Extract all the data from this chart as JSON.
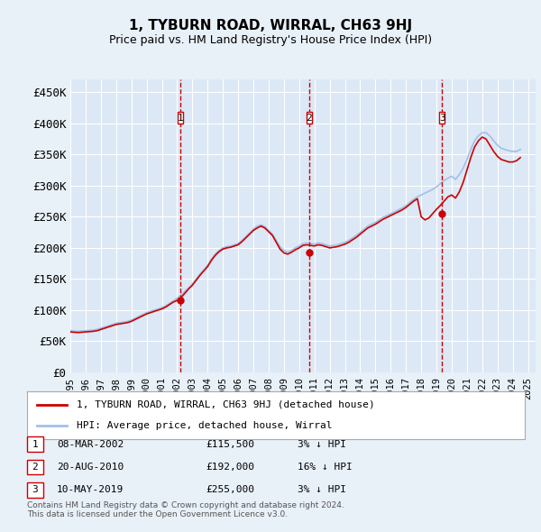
{
  "title": "1, TYBURN ROAD, WIRRAL, CH63 9HJ",
  "subtitle": "Price paid vs. HM Land Registry's House Price Index (HPI)",
  "ylabel_ticks": [
    "£0",
    "£50K",
    "£100K",
    "£150K",
    "£200K",
    "£250K",
    "£300K",
    "£350K",
    "£400K",
    "£450K"
  ],
  "ytick_values": [
    0,
    50000,
    100000,
    150000,
    200000,
    250000,
    300000,
    350000,
    400000,
    450000
  ],
  "ylim": [
    0,
    470000
  ],
  "xlim_start": 1995.0,
  "xlim_end": 2025.5,
  "bg_color": "#e8f0f8",
  "plot_bg": "#dce8f5",
  "grid_color": "#ffffff",
  "hpi_color": "#a0c0e8",
  "price_color": "#cc0000",
  "sale_marker_color": "#cc0000",
  "legend_box_color": "#ffffff",
  "legend_border_color": "#aaaaaa",
  "transaction_label": "1, TYBURN ROAD, WIRRAL, CH63 9HJ (detached house)",
  "hpi_label": "HPI: Average price, detached house, Wirral",
  "transactions": [
    {
      "id": 1,
      "date": 2002.19,
      "price": 115500,
      "hpi_pct": 3,
      "direction": "down",
      "label": "08-MAR-2002",
      "price_str": "£115,500",
      "pct_str": "3% ↓ HPI"
    },
    {
      "id": 2,
      "date": 2010.64,
      "price": 192000,
      "hpi_pct": 16,
      "direction": "down",
      "label": "20-AUG-2010",
      "price_str": "£192,000",
      "pct_str": "16% ↓ HPI"
    },
    {
      "id": 3,
      "date": 2019.36,
      "price": 255000,
      "hpi_pct": 3,
      "direction": "down",
      "label": "10-MAY-2019",
      "price_str": "£255,000",
      "pct_str": "3% ↓ HPI"
    }
  ],
  "footer_text": "Contains HM Land Registry data © Crown copyright and database right 2024.\nThis data is licensed under the Open Government Licence v3.0.",
  "hpi_data": {
    "years": [
      1995.0,
      1995.25,
      1995.5,
      1995.75,
      1996.0,
      1996.25,
      1996.5,
      1996.75,
      1997.0,
      1997.25,
      1997.5,
      1997.75,
      1998.0,
      1998.25,
      1998.5,
      1998.75,
      1999.0,
      1999.25,
      1999.5,
      1999.75,
      2000.0,
      2000.25,
      2000.5,
      2000.75,
      2001.0,
      2001.25,
      2001.5,
      2001.75,
      2002.0,
      2002.25,
      2002.5,
      2002.75,
      2003.0,
      2003.25,
      2003.5,
      2003.75,
      2004.0,
      2004.25,
      2004.5,
      2004.75,
      2005.0,
      2005.25,
      2005.5,
      2005.75,
      2006.0,
      2006.25,
      2006.5,
      2006.75,
      2007.0,
      2007.25,
      2007.5,
      2007.75,
      2008.0,
      2008.25,
      2008.5,
      2008.75,
      2009.0,
      2009.25,
      2009.5,
      2009.75,
      2010.0,
      2010.25,
      2010.5,
      2010.75,
      2011.0,
      2011.25,
      2011.5,
      2011.75,
      2012.0,
      2012.25,
      2012.5,
      2012.75,
      2013.0,
      2013.25,
      2013.5,
      2013.75,
      2014.0,
      2014.25,
      2014.5,
      2014.75,
      2015.0,
      2015.25,
      2015.5,
      2015.75,
      2016.0,
      2016.25,
      2016.5,
      2016.75,
      2017.0,
      2017.25,
      2017.5,
      2017.75,
      2018.0,
      2018.25,
      2018.5,
      2018.75,
      2019.0,
      2019.25,
      2019.5,
      2019.75,
      2020.0,
      2020.25,
      2020.5,
      2020.75,
      2021.0,
      2021.25,
      2021.5,
      2021.75,
      2022.0,
      2022.25,
      2022.5,
      2022.75,
      2023.0,
      2023.25,
      2023.5,
      2023.75,
      2024.0,
      2024.25,
      2024.5
    ],
    "values": [
      67000,
      66500,
      66000,
      66500,
      67000,
      67500,
      68000,
      69000,
      71000,
      73000,
      75000,
      77000,
      79000,
      80000,
      81000,
      82000,
      84000,
      87000,
      90000,
      93000,
      96000,
      98000,
      100000,
      102000,
      104000,
      107000,
      111000,
      115000,
      119000,
      124000,
      130000,
      136000,
      142000,
      150000,
      158000,
      165000,
      172000,
      182000,
      190000,
      196000,
      200000,
      202000,
      203000,
      205000,
      207000,
      212000,
      218000,
      224000,
      230000,
      235000,
      237000,
      234000,
      228000,
      222000,
      212000,
      202000,
      196000,
      193000,
      196000,
      200000,
      203000,
      207000,
      208000,
      207000,
      206000,
      208000,
      207000,
      205000,
      203000,
      204000,
      205000,
      207000,
      209000,
      212000,
      216000,
      220000,
      225000,
      230000,
      235000,
      238000,
      241000,
      245000,
      249000,
      252000,
      255000,
      258000,
      261000,
      264000,
      268000,
      273000,
      278000,
      282000,
      285000,
      288000,
      291000,
      294000,
      298000,
      303000,
      308000,
      312000,
      315000,
      310000,
      318000,
      328000,
      342000,
      358000,
      372000,
      380000,
      385000,
      385000,
      380000,
      372000,
      365000,
      360000,
      358000,
      356000,
      355000,
      355000,
      358000
    ]
  },
  "price_data": {
    "years": [
      1995.0,
      1995.25,
      1995.5,
      1995.75,
      1996.0,
      1996.25,
      1996.5,
      1996.75,
      1997.0,
      1997.25,
      1997.5,
      1997.75,
      1998.0,
      1998.25,
      1998.5,
      1998.75,
      1999.0,
      1999.25,
      1999.5,
      1999.75,
      2000.0,
      2000.25,
      2000.5,
      2000.75,
      2001.0,
      2001.25,
      2001.5,
      2001.75,
      2002.0,
      2002.25,
      2002.5,
      2002.75,
      2003.0,
      2003.25,
      2003.5,
      2003.75,
      2004.0,
      2004.25,
      2004.5,
      2004.75,
      2005.0,
      2005.25,
      2005.5,
      2005.75,
      2006.0,
      2006.25,
      2006.5,
      2006.75,
      2007.0,
      2007.25,
      2007.5,
      2007.75,
      2008.0,
      2008.25,
      2008.5,
      2008.75,
      2009.0,
      2009.25,
      2009.5,
      2009.75,
      2010.0,
      2010.25,
      2010.5,
      2010.75,
      2011.0,
      2011.25,
      2011.5,
      2011.75,
      2012.0,
      2012.25,
      2012.5,
      2012.75,
      2013.0,
      2013.25,
      2013.5,
      2013.75,
      2014.0,
      2014.25,
      2014.5,
      2014.75,
      2015.0,
      2015.25,
      2015.5,
      2015.75,
      2016.0,
      2016.25,
      2016.5,
      2016.75,
      2017.0,
      2017.25,
      2017.5,
      2017.75,
      2018.0,
      2018.25,
      2018.5,
      2018.75,
      2019.0,
      2019.25,
      2019.5,
      2019.75,
      2020.0,
      2020.25,
      2020.5,
      2020.75,
      2021.0,
      2021.25,
      2021.5,
      2021.75,
      2022.0,
      2022.25,
      2022.5,
      2022.75,
      2023.0,
      2023.25,
      2023.5,
      2023.75,
      2024.0,
      2024.25,
      2024.5
    ],
    "values": [
      65000,
      64500,
      64000,
      64500,
      65000,
      65500,
      66000,
      67000,
      69000,
      71000,
      73000,
      75000,
      77000,
      78000,
      79000,
      80000,
      82000,
      85000,
      88000,
      91000,
      94000,
      96000,
      98000,
      100000,
      102000,
      105000,
      109000,
      113000,
      115500,
      120000,
      127000,
      134000,
      140000,
      148000,
      156000,
      163000,
      170000,
      180000,
      188000,
      194000,
      198000,
      200000,
      201000,
      203000,
      205000,
      210000,
      216000,
      222000,
      228000,
      232000,
      235000,
      232000,
      226000,
      220000,
      209000,
      198000,
      192000,
      190000,
      193000,
      197000,
      200000,
      204000,
      205000,
      204000,
      203000,
      205000,
      204000,
      202000,
      200000,
      201000,
      202000,
      204000,
      206000,
      209000,
      213000,
      217000,
      222000,
      227000,
      232000,
      235000,
      238000,
      242000,
      246000,
      249000,
      252000,
      255000,
      258000,
      261000,
      265000,
      270000,
      275000,
      279000,
      250000,
      245000,
      248000,
      255000,
      262000,
      268000,
      275000,
      282000,
      285000,
      280000,
      290000,
      305000,
      325000,
      345000,
      362000,
      372000,
      378000,
      375000,
      365000,
      355000,
      347000,
      342000,
      340000,
      338000,
      338000,
      340000,
      345000
    ]
  }
}
